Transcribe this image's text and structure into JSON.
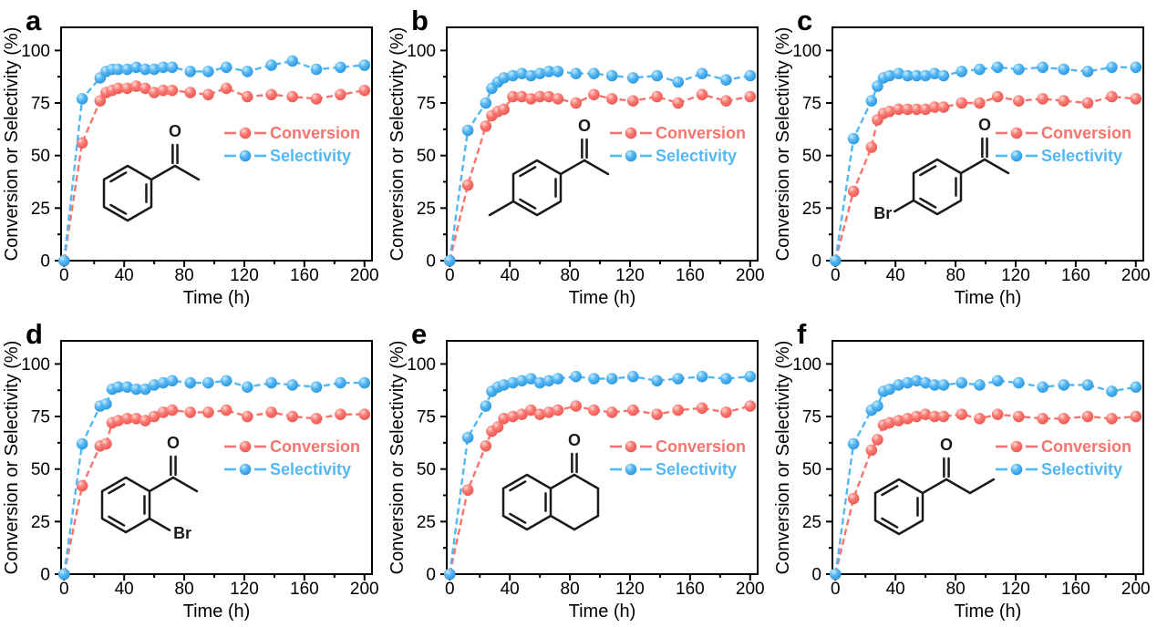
{
  "figure": {
    "background": "#ffffff",
    "axis_color": "#000000",
    "bond_color": "#1a1a1a",
    "series_colors": {
      "conversion": "#f9736d",
      "selectivity": "#53b7f4"
    },
    "marker_gradients": {
      "conversion": [
        "#ffd6d2",
        "#f97a73",
        "#ea5750"
      ],
      "selectivity": [
        "#c6ebff",
        "#55b7f4",
        "#2b95da"
      ]
    },
    "legend": {
      "conversion_label": "Conversion",
      "selectivity_label": "Selectivity"
    },
    "axes": {
      "xlabel": "Time (h)",
      "ylabel": "Conversion or Selectivity (%)",
      "xticks": [
        0,
        40,
        80,
        120,
        160,
        200
      ],
      "yticks": [
        0,
        25,
        50,
        75,
        100
      ],
      "x_minor_step": 20,
      "y_minor_step": 12.5,
      "xlim": [
        -2,
        205
      ],
      "ylim": [
        0,
        111
      ],
      "grid": false,
      "frame": true
    }
  },
  "chart_data": [
    {
      "panel_label": "a",
      "type": "line",
      "structure": "acetophenone",
      "structure_atom_labels": [
        "O"
      ],
      "x": [
        0,
        12,
        24,
        28,
        32,
        36,
        42,
        48,
        54,
        60,
        66,
        72,
        84,
        96,
        108,
        122,
        138,
        152,
        168,
        184,
        200
      ],
      "series": [
        {
          "name": "Conversion",
          "values": [
            0,
            56,
            76,
            80,
            81,
            82,
            82,
            83,
            82,
            80,
            81,
            81,
            80,
            79,
            82,
            78,
            79,
            78,
            77,
            79,
            81
          ]
        },
        {
          "name": "Selectivity",
          "values": [
            0,
            77,
            87,
            90,
            91,
            91,
            91,
            92,
            91,
            91,
            92,
            92,
            90,
            90,
            92,
            90,
            93,
            95,
            91,
            92,
            93
          ]
        }
      ]
    },
    {
      "panel_label": "b",
      "type": "line",
      "structure": "4-methylacetophenone",
      "structure_atom_labels": [
        "O"
      ],
      "x": [
        0,
        12,
        24,
        28,
        32,
        36,
        42,
        48,
        54,
        60,
        66,
        72,
        84,
        96,
        108,
        122,
        138,
        152,
        168,
        184,
        200
      ],
      "series": [
        {
          "name": "Conversion",
          "values": [
            0,
            36,
            64,
            69,
            71,
            72,
            78,
            78,
            77,
            78,
            78,
            77,
            75,
            79,
            77,
            76,
            78,
            75,
            79,
            76,
            78
          ]
        },
        {
          "name": "Selectivity",
          "values": [
            0,
            62,
            75,
            82,
            85,
            87,
            88,
            89,
            88,
            89,
            90,
            90,
            89,
            89,
            88,
            87,
            88,
            85,
            89,
            86,
            88
          ]
        }
      ]
    },
    {
      "panel_label": "c",
      "type": "line",
      "structure": "4-bromoacetophenone",
      "structure_atom_labels": [
        "O",
        "Br"
      ],
      "x": [
        0,
        12,
        24,
        28,
        32,
        36,
        42,
        48,
        54,
        60,
        66,
        72,
        84,
        96,
        108,
        122,
        138,
        152,
        168,
        184,
        200
      ],
      "series": [
        {
          "name": "Conversion",
          "values": [
            0,
            33,
            54,
            67,
            70,
            71,
            72,
            72,
            72,
            72,
            73,
            73,
            75,
            75,
            78,
            76,
            77,
            76,
            75,
            78,
            77
          ]
        },
        {
          "name": "Selectivity",
          "values": [
            0,
            58,
            76,
            83,
            87,
            88,
            89,
            88,
            88,
            88,
            89,
            88,
            90,
            91,
            92,
            91,
            92,
            91,
            90,
            92,
            92
          ]
        }
      ]
    },
    {
      "panel_label": "d",
      "type": "line",
      "structure": "2-bromoacetophenone",
      "structure_atom_labels": [
        "O",
        "Br"
      ],
      "x": [
        0,
        12,
        24,
        28,
        32,
        36,
        42,
        48,
        54,
        60,
        66,
        72,
        84,
        96,
        108,
        122,
        138,
        152,
        168,
        184,
        200
      ],
      "series": [
        {
          "name": "Conversion",
          "values": [
            0,
            42,
            61,
            62,
            72,
            73,
            74,
            74,
            73,
            75,
            77,
            78,
            77,
            77,
            78,
            75,
            77,
            75,
            74,
            76,
            76
          ]
        },
        {
          "name": "Selectivity",
          "values": [
            0,
            62,
            80,
            81,
            88,
            89,
            89,
            88,
            88,
            90,
            91,
            92,
            91,
            91,
            92,
            89,
            91,
            90,
            89,
            91,
            91
          ]
        }
      ]
    },
    {
      "panel_label": "e",
      "type": "line",
      "structure": "1-tetralone",
      "structure_atom_labels": [
        "O"
      ],
      "x": [
        0,
        12,
        24,
        28,
        32,
        36,
        42,
        48,
        54,
        60,
        66,
        72,
        84,
        96,
        108,
        122,
        138,
        152,
        168,
        184,
        200
      ],
      "series": [
        {
          "name": "Conversion",
          "values": [
            0,
            40,
            61,
            68,
            70,
            74,
            75,
            76,
            78,
            76,
            77,
            78,
            80,
            78,
            77,
            78,
            76,
            78,
            79,
            77,
            80
          ]
        },
        {
          "name": "Selectivity",
          "values": [
            0,
            65,
            80,
            87,
            89,
            90,
            91,
            92,
            93,
            91,
            92,
            93,
            94,
            93,
            93,
            94,
            92,
            93,
            94,
            93,
            94
          ]
        }
      ]
    },
    {
      "panel_label": "f",
      "type": "line",
      "structure": "propiophenone",
      "structure_atom_labels": [
        "O"
      ],
      "x": [
        0,
        12,
        24,
        28,
        32,
        36,
        42,
        48,
        54,
        60,
        66,
        72,
        84,
        96,
        108,
        122,
        138,
        152,
        168,
        184,
        200
      ],
      "series": [
        {
          "name": "Conversion",
          "values": [
            0,
            36,
            59,
            64,
            71,
            72,
            73,
            74,
            75,
            76,
            75,
            75,
            76,
            74,
            76,
            75,
            74,
            74,
            75,
            74,
            75
          ]
        },
        {
          "name": "Selectivity",
          "values": [
            0,
            62,
            78,
            80,
            87,
            88,
            90,
            91,
            92,
            91,
            90,
            90,
            91,
            90,
            92,
            91,
            89,
            90,
            90,
            87,
            89
          ]
        }
      ]
    }
  ]
}
